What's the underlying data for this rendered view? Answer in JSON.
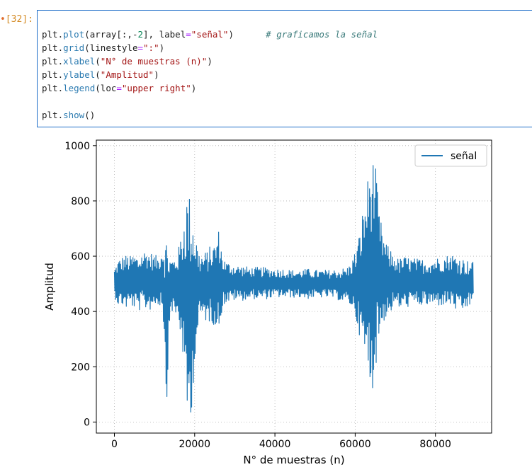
{
  "prompt": {
    "label": "[32]:"
  },
  "code": {
    "line1": {
      "p1": "plt.",
      "fn": "plot",
      "p2": "(array[:,-",
      "num": "2",
      "p3": "], label",
      "eq": "=",
      "str": "\"señal\"",
      "p4": ")",
      "cmt": "# graficamos la señal"
    },
    "line2": {
      "p1": "plt.",
      "fn": "grid",
      "p2": "(linestyle",
      "eq": "=",
      "str": "\":\"",
      "p3": ")"
    },
    "line3": {
      "p1": "plt.",
      "fn": "xlabel",
      "p2": "(",
      "str": "\"N° de muestras (n)\"",
      "p3": ")"
    },
    "line4": {
      "p1": "plt.",
      "fn": "ylabel",
      "p2": "(",
      "str": "\"Amplitud\"",
      "p3": ")"
    },
    "line5": {
      "p1": "plt.",
      "fn": "legend",
      "p2": "(loc",
      "eq": "=",
      "str": "\"upper right\"",
      "p3": ")"
    },
    "line6": {
      "p1": "plt.",
      "fn": "show",
      "p2": "()"
    }
  },
  "chart_data": {
    "type": "line",
    "xlabel": "N° de muestras (n)",
    "ylabel": "Amplitud",
    "xlim": [
      -4500,
      94000
    ],
    "ylim": [
      -40,
      1020
    ],
    "xticks": [
      0,
      20000,
      40000,
      60000,
      80000
    ],
    "yticks": [
      0,
      200,
      400,
      600,
      800,
      1000
    ],
    "xtick_labels": [
      "0",
      "20000",
      "40000",
      "60000",
      "80000"
    ],
    "ytick_labels": [
      "0",
      "200",
      "400",
      "600",
      "800",
      "1000"
    ],
    "grid": true,
    "grid_style": "dotted",
    "legend_loc": "upper right",
    "series": [
      {
        "name": "señal",
        "color": "#1f77b4",
        "x": [
          0,
          1000,
          2000,
          3000,
          4000,
          5000,
          6000,
          7000,
          8000,
          9000,
          10000,
          11000,
          12000,
          13000,
          14000,
          15000,
          16000,
          17000,
          18000,
          19000,
          20000,
          21000,
          22000,
          23000,
          24000,
          25000,
          26000,
          27000,
          28000,
          30000,
          32000,
          34000,
          36000,
          38000,
          40000,
          42000,
          44000,
          46000,
          48000,
          50000,
          52000,
          54000,
          56000,
          58000,
          59000,
          60000,
          61000,
          62000,
          63000,
          64000,
          65000,
          66000,
          67000,
          68000,
          69000,
          70000,
          71000,
          72000,
          74000,
          76000,
          78000,
          80000,
          82000,
          84000,
          86000,
          88000,
          89500
        ],
        "upper": [
          555,
          590,
          600,
          605,
          600,
          610,
          600,
          620,
          625,
          615,
          605,
          600,
          640,
          680,
          590,
          600,
          630,
          720,
          840,
          820,
          720,
          620,
          610,
          620,
          640,
          650,
          700,
          600,
          580,
          570,
          565,
          560,
          560,
          560,
          555,
          555,
          550,
          550,
          555,
          550,
          550,
          550,
          555,
          560,
          580,
          620,
          680,
          780,
          870,
          970,
          940,
          760,
          680,
          640,
          620,
          600,
          590,
          600,
          595,
          590,
          590,
          595,
          600,
          610,
          600,
          585,
          580
        ],
        "lower": [
          455,
          420,
          420,
          410,
          420,
          410,
          400,
          410,
          405,
          405,
          420,
          420,
          420,
          60,
          410,
          380,
          360,
          250,
          0,
          0,
          200,
          350,
          380,
          360,
          360,
          350,
          320,
          420,
          430,
          440,
          440,
          445,
          445,
          445,
          450,
          450,
          450,
          450,
          445,
          450,
          450,
          450,
          440,
          430,
          420,
          380,
          320,
          230,
          180,
          90,
          180,
          300,
          360,
          380,
          400,
          420,
          410,
          410,
          420,
          420,
          420,
          420,
          420,
          420,
          390,
          410,
          440
        ]
      }
    ]
  }
}
